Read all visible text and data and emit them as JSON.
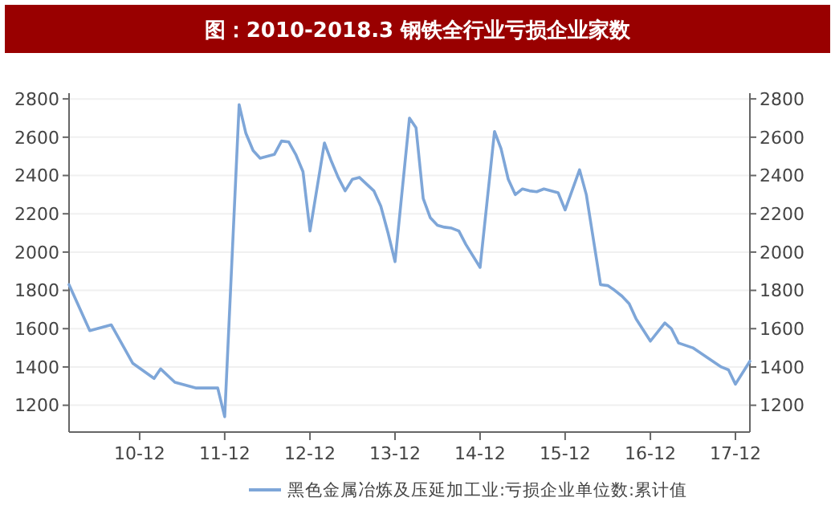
{
  "chart_data": {
    "type": "line",
    "title": "图：2010-2018.3 钢铁全行业亏损企业家数",
    "x": [
      "2010-02",
      "2010-05",
      "2010-08",
      "2010-11",
      "2011-02",
      "2011-03",
      "2011-05",
      "2011-08",
      "2011-11",
      "2011-12",
      "2012-02",
      "2012-03",
      "2012-04",
      "2012-05",
      "2012-07",
      "2012-08",
      "2012-09",
      "2012-10",
      "2012-11",
      "2012-12",
      "2013-02",
      "2013-03",
      "2013-04",
      "2013-05",
      "2013-06",
      "2013-07",
      "2013-09",
      "2013-10",
      "2013-11",
      "2013-12",
      "2014-02",
      "2014-03",
      "2014-04",
      "2014-05",
      "2014-06",
      "2014-07",
      "2014-08",
      "2014-09",
      "2014-10",
      "2014-12",
      "2015-02",
      "2015-03",
      "2015-04",
      "2015-05",
      "2015-06",
      "2015-07",
      "2015-08",
      "2015-09",
      "2015-11",
      "2015-12",
      "2016-02",
      "2016-03",
      "2016-05",
      "2016-06",
      "2016-07",
      "2016-08",
      "2016-09",
      "2016-10",
      "2016-12",
      "2017-02",
      "2017-03",
      "2017-04",
      "2017-06",
      "2017-08",
      "2017-10",
      "2017-11",
      "2017-12",
      "2018-02"
    ],
    "series": [
      {
        "name": "黑色金属冶炼及压延加工业:亏损企业单位数:累计值",
        "color": "#7ea6d8",
        "values": [
          1830,
          1590,
          1620,
          1420,
          1340,
          1390,
          1320,
          1290,
          1290,
          1140,
          2770,
          2620,
          2530,
          2490,
          2510,
          2580,
          2575,
          2510,
          2420,
          2110,
          2570,
          2480,
          2390,
          2320,
          2380,
          2390,
          2320,
          2240,
          2100,
          1950,
          2700,
          2650,
          2280,
          2180,
          2140,
          2130,
          2125,
          2110,
          2040,
          1920,
          2630,
          2540,
          2380,
          2300,
          2330,
          2320,
          2315,
          2330,
          2310,
          2220,
          2430,
          2300,
          1830,
          1825,
          1800,
          1770,
          1730,
          1650,
          1535,
          1630,
          1600,
          1525,
          1500,
          1450,
          1400,
          1385,
          1310,
          1430
        ]
      }
    ],
    "xlim": [
      "2010-02",
      "2018-02"
    ],
    "xticks": [
      {
        "value": "2010-12",
        "label": "10-12"
      },
      {
        "value": "2011-12",
        "label": "11-12"
      },
      {
        "value": "2012-12",
        "label": "12-12"
      },
      {
        "value": "2013-12",
        "label": "13-12"
      },
      {
        "value": "2014-12",
        "label": "14-12"
      },
      {
        "value": "2015-12",
        "label": "15-12"
      },
      {
        "value": "2016-12",
        "label": "16-12"
      },
      {
        "value": "2017-12",
        "label": "17-12"
      }
    ],
    "ylim": [
      1060,
      2830
    ],
    "yticks": [
      1200,
      1400,
      1600,
      1800,
      2000,
      2200,
      2400,
      2600,
      2800
    ],
    "y2lim": [
      1060,
      2830
    ],
    "y2ticks": [
      1200,
      1400,
      1600,
      1800,
      2000,
      2200,
      2400,
      2600,
      2800
    ],
    "grid": "y",
    "legend": "bottom",
    "marker": "none",
    "line_style": "solid"
  }
}
